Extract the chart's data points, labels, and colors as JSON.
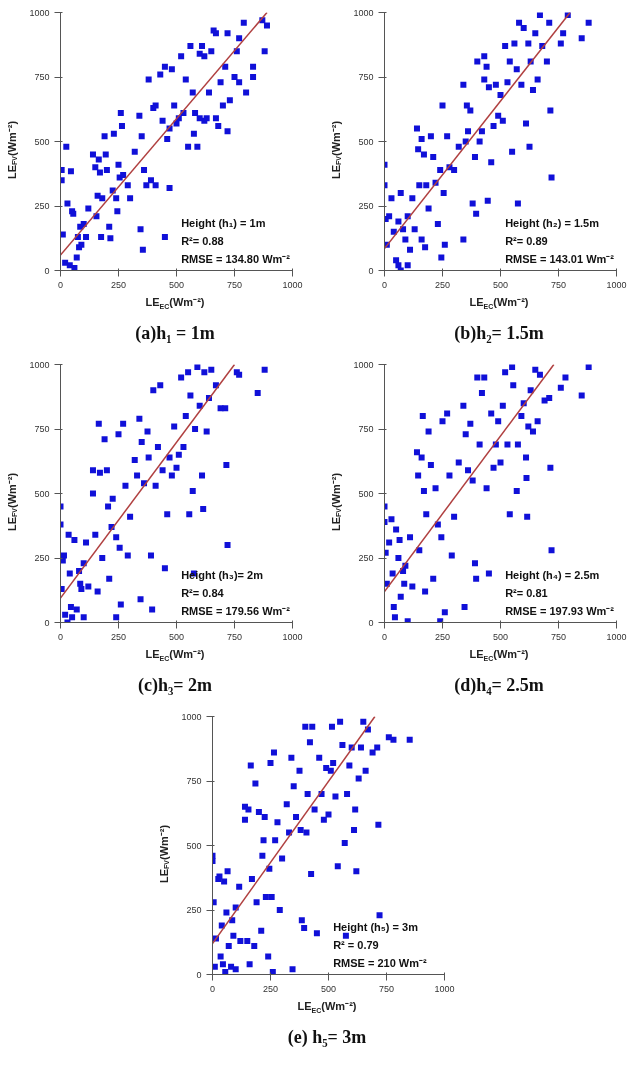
{
  "chart_data": [
    {
      "type": "scatter",
      "title": "(a)h₁ = 1m",
      "xlabel": "LE$_{EC}$(Wm⁻²)",
      "ylabel": "LE$_{FV}$(Wm⁻²)",
      "annotations": [
        "Height (h₁) = 1m",
        "R²= 0.88",
        "RMSE = 134.80 Wm⁻²"
      ],
      "xlim": [
        0,
        1000
      ],
      "ylim": [
        0,
        1000
      ],
      "xticks": [
        0,
        250,
        500,
        750,
        1000
      ],
      "yticks": [
        0,
        250,
        500,
        750,
        1000
      ],
      "marker": "square",
      "grid": false,
      "series": [
        {
          "color": "#1010d8",
          "x": [
            5,
            5,
            25,
            45,
            30,
            50,
            55,
            10,
            20,
            40,
            60,
            70,
            80,
            90,
            75,
            85,
            100,
            110,
            120,
            140,
            150,
            165,
            160,
            170,
            155,
            175,
            180,
            190,
            195,
            200,
            210,
            215,
            225,
            230,
            240,
            245,
            250,
            255,
            260,
            265,
            270,
            290,
            300,
            320,
            340,
            345,
            350,
            355,
            360,
            370,
            380,
            390,
            400,
            410,
            410,
            430,
            440,
            450,
            450,
            460,
            470,
            470,
            480,
            490,
            500,
            510,
            520,
            530,
            540,
            550,
            560,
            570,
            575,
            580,
            590,
            600,
            610,
            620,
            620,
            640,
            650,
            660,
            670,
            670,
            690,
            710,
            720,
            720,
            730,
            750,
            760,
            770,
            770,
            790,
            800,
            830,
            830,
            870,
            880,
            890,
            680,
            700,
            600,
            630
          ],
          "values": [
            390,
            350,
            480,
            385,
            260,
            230,
            220,
            140,
            30,
            20,
            10,
            50,
            90,
            100,
            130,
            170,
            180,
            130,
            240,
            450,
            400,
            430,
            290,
            380,
            210,
            130,
            280,
            520,
            450,
            390,
            170,
            125,
            310,
            530,
            280,
            230,
            410,
            360,
            610,
            560,
            370,
            330,
            280,
            460,
            600,
            160,
            520,
            80,
            390,
            330,
            740,
            350,
            630,
            640,
            330,
            760,
            580,
            790,
            130,
            510,
            550,
            320,
            780,
            640,
            570,
            590,
            830,
            610,
            740,
            480,
            870,
            690,
            530,
            610,
            480,
            840,
            870,
            830,
            580,
            690,
            850,
            930,
            920,
            590,
            730,
            790,
            920,
            540,
            660,
            750,
            850,
            730,
            900,
            960,
            690,
            790,
            750,
            970,
            850,
            950,
            560,
            640,
            590,
            590
          ]
        },
        {
          "type": "line",
          "marker": "none",
          "color": "#b04040",
          "x": [
            0,
            890
          ],
          "values": [
            60,
            1000
          ]
        }
      ]
    },
    {
      "type": "scatter",
      "title": "(b)h₂= 1.5m",
      "xlabel": "LE$_{EC}$(Wm⁻²)",
      "ylabel": "LE$_{FV}$(Wm⁻²)",
      "annotations": [
        "Height (h₂) = 1.5m",
        "R²= 0.89",
        "RMSE = 143.01 Wm⁻²"
      ],
      "xlim": [
        0,
        1000
      ],
      "ylim": [
        0,
        1000
      ],
      "xticks": [
        0,
        250,
        500,
        750,
        1000
      ],
      "yticks": [
        0,
        250,
        500,
        750,
        1000
      ],
      "marker": "square",
      "grid": false,
      "series": [
        {
          "color": "#1010d8",
          "x": [
            0,
            0,
            5,
            10,
            20,
            30,
            40,
            50,
            60,
            70,
            60,
            70,
            80,
            90,
            100,
            100,
            110,
            120,
            130,
            140,
            145,
            150,
            160,
            160,
            170,
            175,
            180,
            190,
            200,
            210,
            220,
            230,
            240,
            245,
            250,
            255,
            260,
            270,
            280,
            300,
            320,
            340,
            340,
            350,
            355,
            360,
            370,
            380,
            390,
            395,
            400,
            410,
            420,
            430,
            430,
            440,
            445,
            450,
            460,
            470,
            480,
            490,
            500,
            510,
            520,
            530,
            540,
            550,
            560,
            570,
            575,
            580,
            590,
            600,
            610,
            620,
            625,
            630,
            640,
            650,
            660,
            670,
            680,
            700,
            710,
            715,
            720,
            760,
            770,
            790,
            850,
            880
          ],
          "values": [
            410,
            330,
            200,
            100,
            210,
            280,
            150,
            40,
            20,
            0,
            190,
            300,
            160,
            120,
            210,
            20,
            80,
            280,
            160,
            550,
            470,
            330,
            510,
            120,
            450,
            90,
            330,
            240,
            520,
            440,
            340,
            180,
            390,
            50,
            640,
            300,
            100,
            520,
            400,
            390,
            480,
            720,
            120,
            500,
            640,
            540,
            620,
            260,
            440,
            220,
            810,
            500,
            540,
            830,
            740,
            790,
            270,
            710,
            420,
            560,
            720,
            600,
            680,
            580,
            870,
            730,
            810,
            460,
            880,
            780,
            260,
            960,
            720,
            940,
            570,
            880,
            480,
            810,
            700,
            920,
            740,
            990,
            870,
            810,
            960,
            620,
            360,
            880,
            920,
            990,
            900,
            960
          ]
        },
        {
          "type": "line",
          "marker": "none",
          "color": "#b04040",
          "x": [
            0,
            800
          ],
          "values": [
            85,
            1000
          ]
        }
      ]
    },
    {
      "type": "scatter",
      "title": "(c)h₃= 2m",
      "xlabel": "LE$_{EC}$(Wm⁻²)",
      "ylabel": "LE$_{FV}$(Wm⁻²)",
      "annotations": [
        "Height (h₃)= 2m",
        "R²= 0.84",
        "RMSE = 179.56 Wm⁻²"
      ],
      "xlim": [
        0,
        1000
      ],
      "ylim": [
        0,
        1000
      ],
      "xticks": [
        0,
        250,
        500,
        750,
        1000
      ],
      "yticks": [
        0,
        250,
        500,
        750,
        1000
      ],
      "marker": "square",
      "grid": false,
      "series": [
        {
          "color": "#1010d8",
          "x": [
            0,
            0,
            5,
            10,
            15,
            20,
            30,
            35,
            40,
            45,
            50,
            60,
            70,
            80,
            85,
            90,
            100,
            100,
            110,
            120,
            140,
            140,
            150,
            160,
            165,
            170,
            180,
            190,
            200,
            205,
            210,
            220,
            225,
            240,
            240,
            250,
            255,
            260,
            270,
            280,
            290,
            300,
            320,
            330,
            340,
            345,
            350,
            360,
            375,
            380,
            390,
            395,
            400,
            410,
            420,
            430,
            440,
            450,
            460,
            470,
            480,
            490,
            500,
            510,
            520,
            530,
            540,
            550,
            555,
            560,
            570,
            575,
            580,
            590,
            600,
            610,
            615,
            620,
            630,
            640,
            650,
            670,
            690,
            710,
            715,
            720,
            760,
            770,
            850,
            880
          ],
          "values": [
            450,
            380,
            130,
            240,
            260,
            30,
            0,
            340,
            190,
            60,
            20,
            320,
            50,
            200,
            150,
            130,
            230,
            20,
            310,
            140,
            590,
            500,
            340,
            120,
            770,
            580,
            250,
            710,
            590,
            450,
            170,
            370,
            480,
            20,
            330,
            730,
            290,
            70,
            770,
            530,
            260,
            410,
            630,
            570,
            790,
            90,
            700,
            540,
            740,
            640,
            260,
            50,
            900,
            530,
            680,
            920,
            590,
            210,
            420,
            640,
            570,
            760,
            600,
            650,
            950,
            680,
            800,
            970,
            420,
            880,
            510,
            190,
            750,
            990,
            840,
            570,
            440,
            970,
            740,
            870,
            980,
            920,
            830,
            830,
            610,
            300,
            970,
            960,
            890,
            980
          ]
        },
        {
          "type": "line",
          "marker": "none",
          "color": "#b04040",
          "x": [
            0,
            750
          ],
          "values": [
            95,
            1000
          ]
        }
      ]
    },
    {
      "type": "scatter",
      "title": "(d)h₄= 2.5m",
      "xlabel": "LE$_{EC}$(Wm⁻²)",
      "ylabel": "LE$_{FV}$(Wm⁻²)",
      "annotations": [
        "Height (h₄) = 2.5m",
        "R²= 0.81",
        "RMSE = 197.93 Wm⁻²"
      ],
      "xlim": [
        0,
        1000
      ],
      "ylim": [
        0,
        1000
      ],
      "xticks": [
        0,
        250,
        500,
        750,
        1000
      ],
      "yticks": [
        0,
        250,
        500,
        750,
        1000
      ],
      "marker": "square",
      "grid": false,
      "series": [
        {
          "color": "#1010d8",
          "x": [
            0,
            0,
            5,
            10,
            20,
            30,
            35,
            40,
            45,
            50,
            60,
            65,
            70,
            80,
            85,
            90,
            100,
            110,
            120,
            140,
            145,
            150,
            160,
            165,
            170,
            175,
            180,
            190,
            200,
            210,
            220,
            230,
            240,
            245,
            250,
            260,
            270,
            280,
            290,
            300,
            320,
            340,
            345,
            350,
            360,
            370,
            380,
            390,
            395,
            400,
            410,
            420,
            430,
            440,
            450,
            460,
            470,
            480,
            490,
            500,
            510,
            520,
            530,
            540,
            550,
            555,
            570,
            575,
            590,
            600,
            610,
            612,
            615,
            620,
            630,
            640,
            650,
            660,
            670,
            690,
            710,
            715,
            720,
            760,
            780,
            850,
            880
          ],
          "values": [
            450,
            390,
            270,
            150,
            310,
            400,
            190,
            60,
            20,
            360,
            250,
            320,
            100,
            200,
            150,
            220,
            5,
            330,
            140,
            660,
            570,
            280,
            640,
            800,
            510,
            120,
            420,
            740,
            610,
            170,
            520,
            380,
            5,
            330,
            780,
            40,
            810,
            570,
            260,
            410,
            620,
            840,
            60,
            730,
            590,
            770,
            550,
            230,
            170,
            950,
            690,
            890,
            950,
            520,
            190,
            810,
            600,
            690,
            780,
            620,
            840,
            970,
            690,
            420,
            990,
            920,
            510,
            690,
            800,
            850,
            640,
            560,
            410,
            760,
            900,
            740,
            980,
            780,
            960,
            860,
            870,
            600,
            280,
            910,
            950,
            880,
            990
          ]
        },
        {
          "type": "line",
          "marker": "none",
          "color": "#b04040",
          "x": [
            0,
            730
          ],
          "values": [
            120,
            1000
          ]
        }
      ]
    },
    {
      "type": "scatter",
      "title": "(e) h₅= 3m",
      "xlabel": "LE$_{EC}$(Wm⁻²)",
      "ylabel": "LE$_{FV}$(Wm⁻²)",
      "annotations": [
        "Height (h₅) = 3m",
        "R² = 0.79",
        "RMSE = 210 Wm⁻²"
      ],
      "xlim": [
        0,
        1000
      ],
      "ylim": [
        0,
        1000
      ],
      "xticks": [
        0,
        250,
        500,
        750,
        1000
      ],
      "yticks": [
        0,
        250,
        500,
        750,
        1000
      ],
      "marker": "square",
      "grid": false,
      "series": [
        {
          "color": "#1010d8",
          "x": [
            0,
            0,
            5,
            10,
            15,
            25,
            30,
            35,
            40,
            45,
            50,
            55,
            60,
            65,
            70,
            80,
            85,
            90,
            100,
            100,
            115,
            120,
            140,
            140,
            150,
            155,
            160,
            165,
            170,
            180,
            185,
            190,
            200,
            210,
            215,
            220,
            225,
            230,
            240,
            245,
            250,
            255,
            260,
            265,
            270,
            280,
            290,
            300,
            320,
            330,
            340,
            345,
            350,
            360,
            375,
            380,
            385,
            395,
            400,
            405,
            410,
            420,
            425,
            430,
            440,
            450,
            460,
            470,
            480,
            490,
            500,
            510,
            515,
            520,
            530,
            540,
            550,
            560,
            570,
            575,
            580,
            590,
            600,
            610,
            615,
            620,
            630,
            640,
            650,
            660,
            670,
            690,
            710,
            715,
            720,
            760,
            780,
            850
          ],
          "values": [
            460,
            440,
            280,
            30,
            140,
            370,
            380,
            70,
            190,
            40,
            360,
            10,
            240,
            400,
            110,
            30,
            210,
            150,
            260,
            20,
            340,
            130,
            600,
            650,
            130,
            640,
            40,
            810,
            370,
            110,
            740,
            280,
            630,
            170,
            460,
            520,
            610,
            300,
            70,
            410,
            820,
            300,
            10,
            860,
            520,
            590,
            250,
            450,
            660,
            550,
            840,
            20,
            730,
            610,
            790,
            560,
            210,
            180,
            960,
            550,
            700,
            900,
            390,
            960,
            640,
            160,
            840,
            700,
            600,
            800,
            620,
            790,
            960,
            820,
            690,
            420,
            980,
            890,
            510,
            150,
            700,
            810,
            880,
            560,
            640,
            400,
            760,
            880,
            980,
            790,
            950,
            860,
            880,
            580,
            230,
            920,
            910,
            910
          ]
        },
        {
          "type": "line",
          "marker": "none",
          "color": "#b04040",
          "x": [
            0,
            700
          ],
          "values": [
            120,
            1000
          ]
        }
      ]
    }
  ]
}
